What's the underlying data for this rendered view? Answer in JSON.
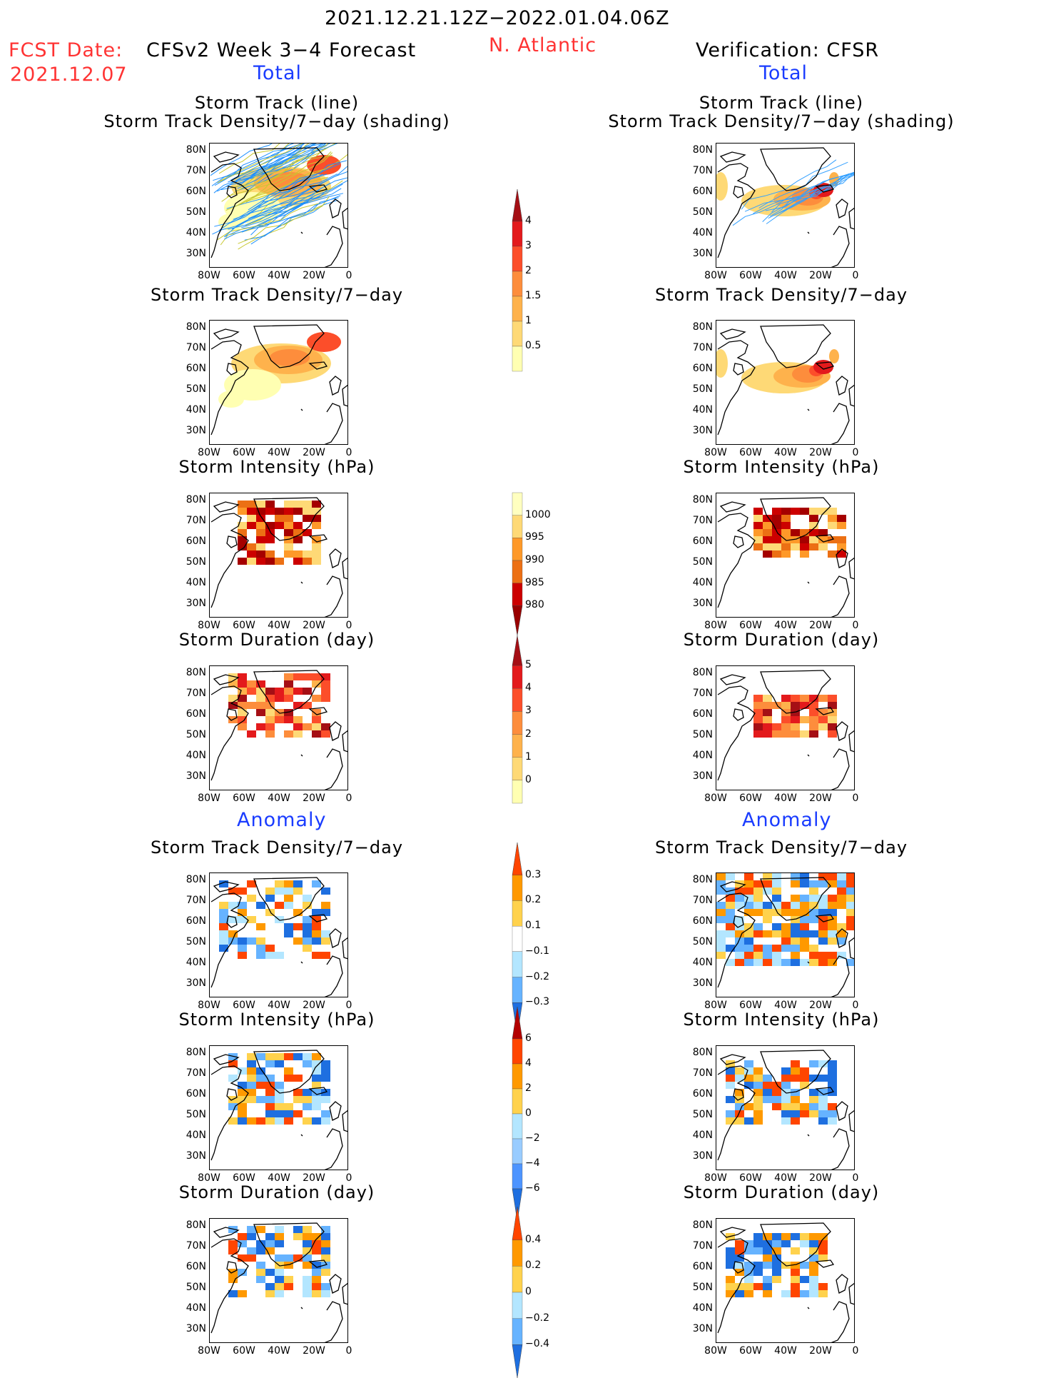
{
  "header": {
    "period": "2021.12.21.12Z−2022.01.04.06Z",
    "fcst_label": "FCST Date:",
    "fcst_date": "2021.12.07",
    "model": "CFSv2 Week 3−4 Forecast",
    "region": "N. Atlantic",
    "verification": "Verification: CFSR"
  },
  "sections": {
    "total_left": "Total",
    "total_right": "Total",
    "anomaly_left": "Anomaly",
    "anomaly_right": "Anomaly"
  },
  "panel_titles": {
    "track_line": "Storm Track (line)",
    "track_shading": "Storm Track Density/7−day (shading)",
    "density": "Storm Track Density/7−day",
    "intensity": "Storm Intensity (hPa)",
    "duration": "Storm Duration (day)"
  },
  "axes": {
    "lat_ticks": [
      "80N",
      "70N",
      "60N",
      "50N",
      "40N",
      "30N"
    ],
    "lon_ticks": [
      "80W",
      "60W",
      "40W",
      "20W",
      "0"
    ]
  },
  "colorbars": {
    "density_total": {
      "labels": [
        "4",
        "3",
        "2",
        "1.5",
        "1",
        "0.5"
      ],
      "colors": [
        "#a50f15",
        "#e31a1c",
        "#fc4e2a",
        "#fd8d3c",
        "#feb24c",
        "#fed976",
        "#ffffb2"
      ]
    },
    "intensity_total": {
      "labels": [
        "1000",
        "995",
        "990",
        "985",
        "980"
      ],
      "colors": [
        "#ffffc0",
        "#fed976",
        "#fe9929",
        "#ec7014",
        "#cc0000",
        "#990000"
      ]
    },
    "duration_total": {
      "labels": [
        "5",
        "4",
        "3",
        "2",
        "1",
        "0"
      ],
      "colors": [
        "#a50f15",
        "#e31a1c",
        "#fc4e2a",
        "#fd8d3c",
        "#feb24c",
        "#fed976",
        "#ffffb2"
      ]
    },
    "density_anom": {
      "labels": [
        "0.3",
        "0.2",
        "0.1",
        "−0.1",
        "−0.2",
        "−0.3"
      ],
      "colors": [
        "#ff4500",
        "#ff9900",
        "#ffd24d",
        "#ffffff",
        "#b3e6ff",
        "#66b3ff",
        "#1e6fe0"
      ]
    },
    "intensity_anom": {
      "labels": [
        "6",
        "4",
        "2",
        "0",
        "−2",
        "−4",
        "−6"
      ],
      "colors": [
        "#b30000",
        "#ff4500",
        "#ff9900",
        "#ffd24d",
        "#b3e6ff",
        "#99ccff",
        "#4d94ff",
        "#1e6fe0"
      ]
    },
    "duration_anom": {
      "labels": [
        "0.4",
        "0.2",
        "0",
        "−0.2",
        "−0.4"
      ],
      "colors": [
        "#ff4500",
        "#ff9900",
        "#ffd24d",
        "#b3e6ff",
        "#66b3ff",
        "#1e6fe0"
      ]
    }
  }
}
